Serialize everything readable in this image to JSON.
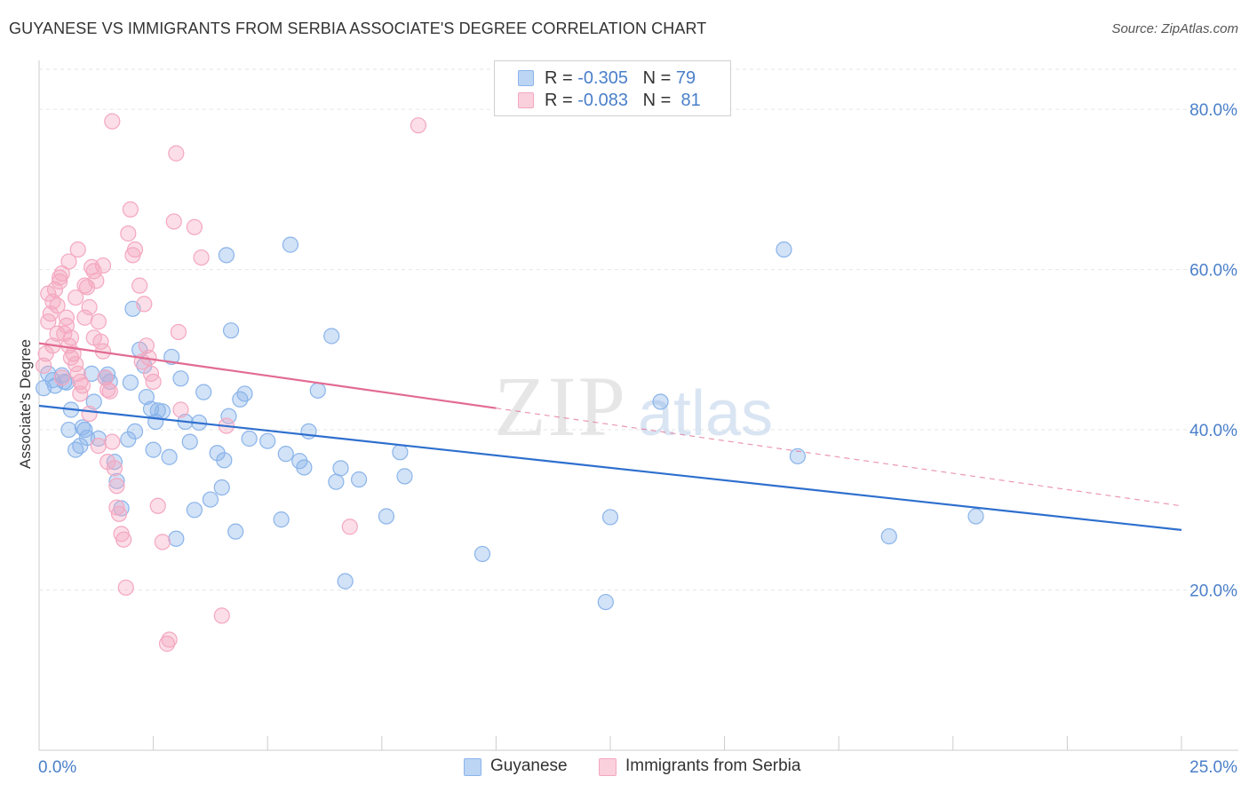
{
  "header": {
    "title": "GUYANESE VS IMMIGRANTS FROM SERBIA ASSOCIATE'S DEGREE CORRELATION CHART",
    "source": "Source: ZipAtlas.com"
  },
  "legend": {
    "rows": [
      {
        "r_label": "R = ",
        "r_value": "-0.305",
        "n_label": "N = ",
        "n_value": "79",
        "color": "#8ab4ea"
      },
      {
        "r_label": "R = ",
        "r_value": "-0.083",
        "n_label": "N = ",
        "n_value": "81",
        "color": "#f4a7c0"
      }
    ]
  },
  "bottom_legend": {
    "items": [
      {
        "label": "Guyanese",
        "color": "#8ab4ea"
      },
      {
        "label": "Immigrants from Serbia",
        "color": "#f4a7c0"
      }
    ]
  },
  "watermark": {
    "zip": "ZIP",
    "atlas": "atlas"
  },
  "chart_data": {
    "type": "scatter",
    "title": "GUYANESE VS IMMIGRANTS FROM SERBIA ASSOCIATE'S DEGREE CORRELATION CHART",
    "xlabel": "",
    "ylabel": "Associate's Degree",
    "xlim": [
      0,
      25
    ],
    "ylim": [
      0,
      85
    ],
    "x_tick_labels": [
      {
        "value": 0,
        "label": "0.0%"
      },
      {
        "value": 25,
        "label": "25.0%"
      }
    ],
    "y_tick_labels": [
      {
        "value": 20,
        "label": "20.0%"
      },
      {
        "value": 40,
        "label": "40.0%"
      },
      {
        "value": 60,
        "label": "60.0%"
      },
      {
        "value": 80,
        "label": "80.0%"
      }
    ],
    "grid": true,
    "series": [
      {
        "name": "Guyanese",
        "color": "#8ab4ea",
        "line_color": "#2e6fce",
        "trend": {
          "x": [
            0,
            25
          ],
          "y": [
            43.0,
            27.5
          ],
          "dashed_extension": null
        },
        "points": [
          [
            0.1,
            45.2
          ],
          [
            0.2,
            47.0
          ],
          [
            0.3,
            46.2
          ],
          [
            0.35,
            45.5
          ],
          [
            0.5,
            46.8
          ],
          [
            0.55,
            46.0
          ],
          [
            0.6,
            45.9
          ],
          [
            0.65,
            40.0
          ],
          [
            0.7,
            42.5
          ],
          [
            0.8,
            37.5
          ],
          [
            0.9,
            38.0
          ],
          [
            1.0,
            40.0
          ],
          [
            1.05,
            39.0
          ],
          [
            1.15,
            47.0
          ],
          [
            1.2,
            43.5
          ],
          [
            1.3,
            38.9
          ],
          [
            1.45,
            46.5
          ],
          [
            1.55,
            46.0
          ],
          [
            1.65,
            36.0
          ],
          [
            1.7,
            33.6
          ],
          [
            1.8,
            30.2
          ],
          [
            1.95,
            38.8
          ],
          [
            2.0,
            45.9
          ],
          [
            2.05,
            55.1
          ],
          [
            2.1,
            39.8
          ],
          [
            2.2,
            50.0
          ],
          [
            2.3,
            48.0
          ],
          [
            2.35,
            44.1
          ],
          [
            2.45,
            42.6
          ],
          [
            2.5,
            37.5
          ],
          [
            2.55,
            41.0
          ],
          [
            2.6,
            42.4
          ],
          [
            2.7,
            42.3
          ],
          [
            2.85,
            36.6
          ],
          [
            2.9,
            49.1
          ],
          [
            3.0,
            26.4
          ],
          [
            3.1,
            46.4
          ],
          [
            3.2,
            41.0
          ],
          [
            3.3,
            38.5
          ],
          [
            3.4,
            30.0
          ],
          [
            3.5,
            40.9
          ],
          [
            3.6,
            44.7
          ],
          [
            3.75,
            31.3
          ],
          [
            3.9,
            37.1
          ],
          [
            4.0,
            32.8
          ],
          [
            4.05,
            36.2
          ],
          [
            4.1,
            61.8
          ],
          [
            4.15,
            41.7
          ],
          [
            4.2,
            52.4
          ],
          [
            4.3,
            27.3
          ],
          [
            4.4,
            43.8
          ],
          [
            4.5,
            44.5
          ],
          [
            4.6,
            38.9
          ],
          [
            5.0,
            38.6
          ],
          [
            5.3,
            28.8
          ],
          [
            5.4,
            37.0
          ],
          [
            5.5,
            63.1
          ],
          [
            5.7,
            36.1
          ],
          [
            5.8,
            35.3
          ],
          [
            5.9,
            39.8
          ],
          [
            6.1,
            44.9
          ],
          [
            6.4,
            51.7
          ],
          [
            6.5,
            33.5
          ],
          [
            6.6,
            35.2
          ],
          [
            6.7,
            21.1
          ],
          [
            7.0,
            33.8
          ],
          [
            7.6,
            29.2
          ],
          [
            7.9,
            37.2
          ],
          [
            8.0,
            34.2
          ],
          [
            9.7,
            24.5
          ],
          [
            12.4,
            18.5
          ],
          [
            12.5,
            29.1
          ],
          [
            13.6,
            43.5
          ],
          [
            16.3,
            62.5
          ],
          [
            16.6,
            36.7
          ],
          [
            18.6,
            26.7
          ],
          [
            20.5,
            29.2
          ],
          [
            0.95,
            40.3
          ],
          [
            1.5,
            46.9
          ]
        ]
      },
      {
        "name": "Immigrants from Serbia",
        "color": "#f4a7c0",
        "line_color": "#e26b92",
        "trend": {
          "x": [
            0,
            10
          ],
          "y": [
            50.8,
            42.7
          ],
          "dashed_extension": {
            "x": [
              10,
              25
            ],
            "y": [
              42.7,
              30.5
            ]
          }
        },
        "points": [
          [
            0.1,
            48.0
          ],
          [
            0.15,
            49.5
          ],
          [
            0.2,
            53.5
          ],
          [
            0.25,
            54.5
          ],
          [
            0.3,
            56.0
          ],
          [
            0.35,
            57.5
          ],
          [
            0.4,
            55.5
          ],
          [
            0.45,
            58.5
          ],
          [
            0.5,
            59.5
          ],
          [
            0.55,
            52.0
          ],
          [
            0.6,
            54.0
          ],
          [
            0.65,
            50.5
          ],
          [
            0.7,
            51.5
          ],
          [
            0.75,
            49.5
          ],
          [
            0.8,
            48.2
          ],
          [
            0.85,
            47.0
          ],
          [
            0.9,
            46.0
          ],
          [
            0.95,
            45.5
          ],
          [
            1.0,
            58.0
          ],
          [
            1.05,
            57.8
          ],
          [
            1.1,
            55.3
          ],
          [
            1.15,
            60.3
          ],
          [
            1.2,
            59.8
          ],
          [
            1.25,
            58.6
          ],
          [
            1.3,
            53.5
          ],
          [
            1.35,
            51.0
          ],
          [
            1.4,
            49.8
          ],
          [
            1.45,
            46.5
          ],
          [
            1.5,
            45.0
          ],
          [
            1.55,
            44.8
          ],
          [
            1.6,
            38.5
          ],
          [
            1.65,
            35.2
          ],
          [
            1.7,
            30.3
          ],
          [
            1.75,
            29.5
          ],
          [
            1.8,
            27.0
          ],
          [
            1.85,
            26.3
          ],
          [
            1.9,
            20.3
          ],
          [
            1.95,
            64.5
          ],
          [
            2.0,
            67.5
          ],
          [
            2.05,
            61.8
          ],
          [
            2.1,
            62.5
          ],
          [
            2.2,
            58.0
          ],
          [
            2.3,
            55.7
          ],
          [
            2.35,
            50.5
          ],
          [
            2.4,
            49.0
          ],
          [
            2.45,
            47.0
          ],
          [
            2.5,
            46.0
          ],
          [
            2.6,
            30.5
          ],
          [
            2.7,
            26.0
          ],
          [
            2.8,
            13.3
          ],
          [
            2.85,
            13.8
          ],
          [
            2.95,
            66.0
          ],
          [
            3.0,
            74.5
          ],
          [
            3.05,
            52.2
          ],
          [
            3.1,
            42.5
          ],
          [
            3.4,
            65.3
          ],
          [
            3.55,
            61.5
          ],
          [
            4.0,
            16.8
          ],
          [
            4.1,
            40.5
          ],
          [
            6.8,
            27.9
          ],
          [
            8.3,
            78.0
          ],
          [
            1.6,
            78.5
          ],
          [
            0.3,
            50.5
          ],
          [
            0.4,
            52.0
          ],
          [
            0.6,
            53.0
          ],
          [
            0.8,
            56.5
          ],
          [
            1.0,
            54.0
          ],
          [
            1.2,
            51.5
          ],
          [
            1.4,
            60.5
          ],
          [
            0.5,
            46.5
          ],
          [
            0.7,
            49.0
          ],
          [
            0.9,
            44.5
          ],
          [
            1.1,
            42.0
          ],
          [
            1.3,
            38.0
          ],
          [
            1.5,
            36.0
          ],
          [
            1.7,
            33.0
          ],
          [
            0.2,
            57.0
          ],
          [
            0.45,
            59.0
          ],
          [
            0.65,
            61.0
          ],
          [
            0.85,
            62.5
          ],
          [
            2.25,
            48.5
          ]
        ]
      }
    ]
  }
}
